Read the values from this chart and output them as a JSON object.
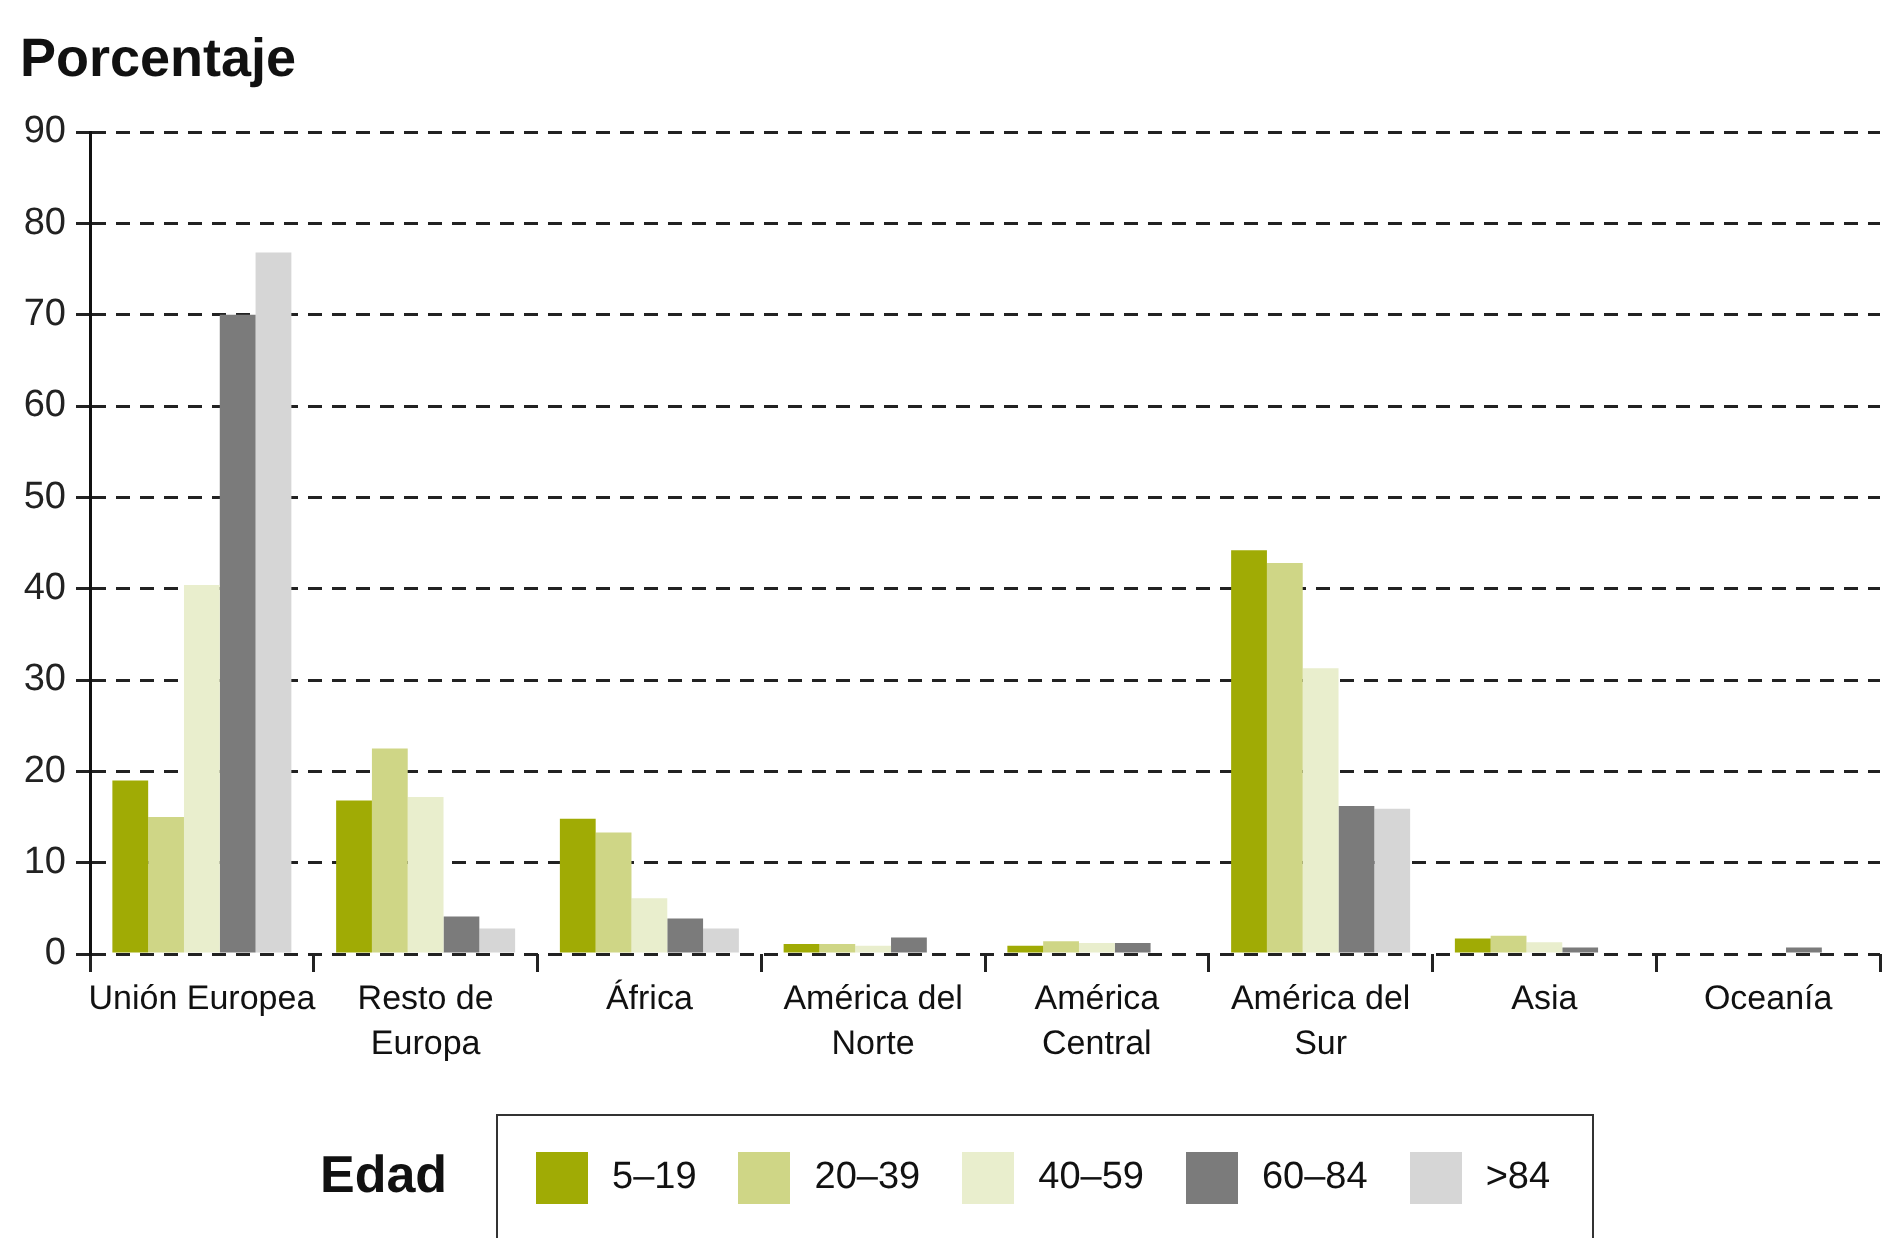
{
  "chart_data": {
    "type": "bar",
    "ylabel": "Porcentaje",
    "legend_title": "Edad",
    "categories": [
      "Unión Europea",
      "Resto de Europa",
      "África",
      "América del Norte",
      "América Central",
      "América del Sur",
      "Asia",
      "Oceanía"
    ],
    "series": [
      {
        "name": "5–19",
        "color": "#a0ab05",
        "values": [
          19.0,
          16.8,
          14.8,
          1.1,
          0.9,
          44.2,
          1.7,
          null
        ]
      },
      {
        "name": "20–39",
        "color": "#cfd686",
        "values": [
          15.0,
          22.5,
          13.3,
          1.1,
          1.4,
          42.8,
          2.0,
          null
        ]
      },
      {
        "name": "40–59",
        "color": "#e9eecd",
        "values": [
          40.4,
          17.2,
          6.1,
          0.9,
          1.2,
          31.3,
          1.3,
          null
        ]
      },
      {
        "name": "60–84",
        "color": "#7b7b7b",
        "values": [
          70.0,
          4.1,
          3.9,
          1.8,
          1.2,
          16.2,
          0.7,
          0.7
        ]
      },
      {
        "name": ">84",
        "color": "#d6d6d6",
        "values": [
          76.8,
          2.8,
          2.8,
          null,
          null,
          15.9,
          null,
          null
        ]
      }
    ],
    "ylim": [
      0,
      90
    ],
    "yticks": [
      0,
      10,
      20,
      30,
      40,
      50,
      60,
      70,
      80,
      90
    ],
    "grid": "y",
    "legend": "bottom"
  }
}
